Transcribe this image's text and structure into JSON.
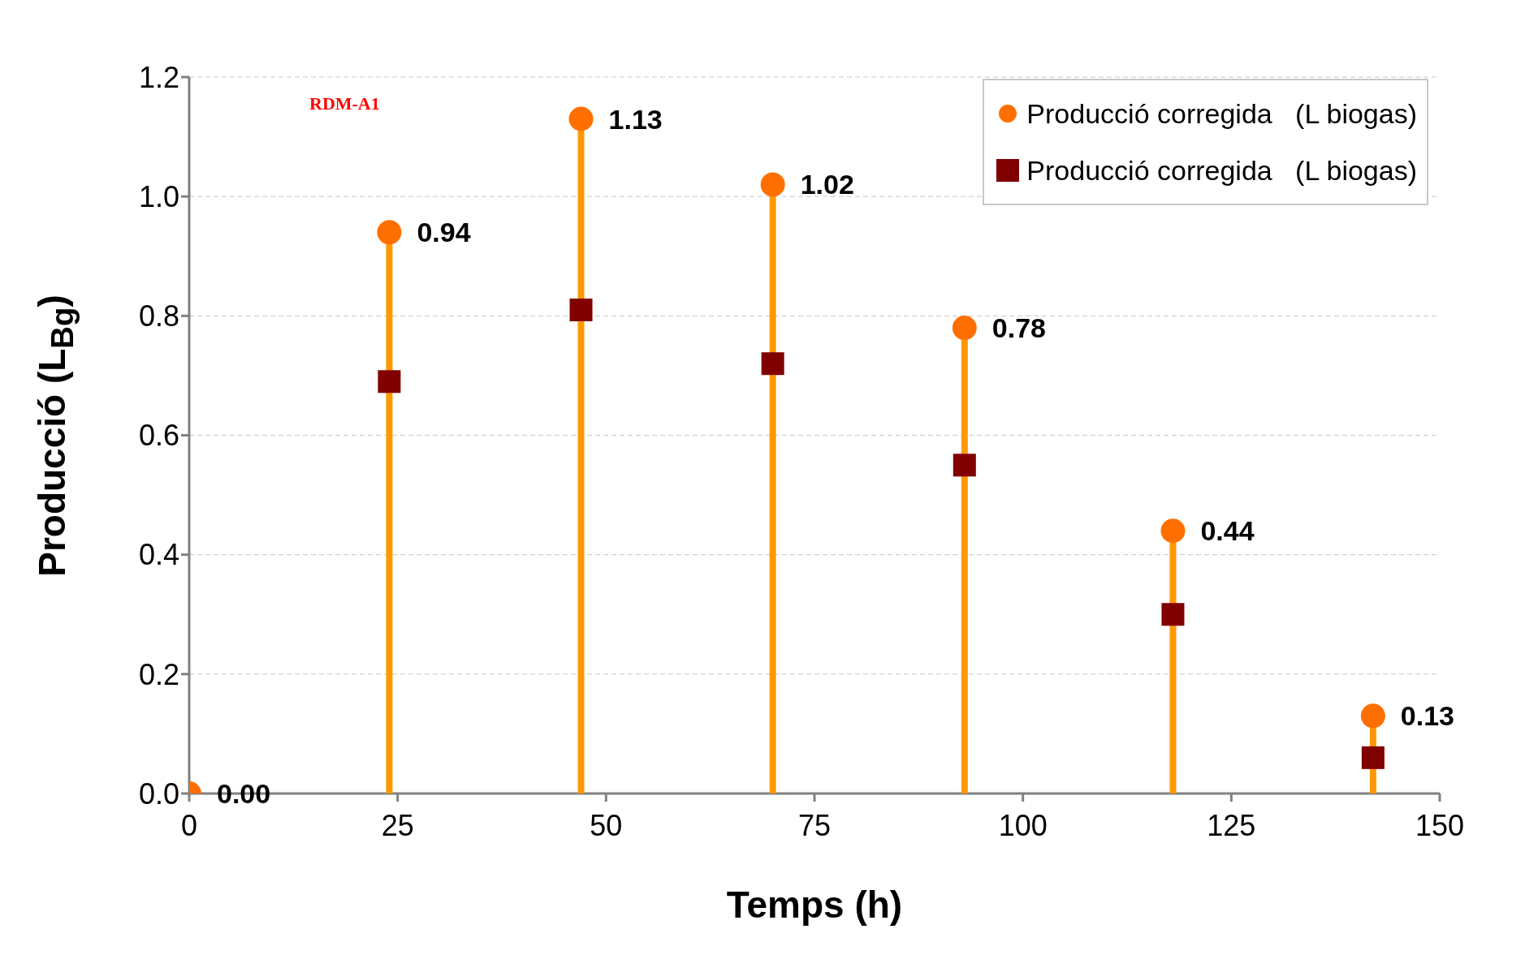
{
  "chart_data": {
    "type": "scatter",
    "xlabel": "Temps (h)",
    "ylabel": "Producció (L$_{Bg}$)",
    "annotations": [
      "RDM-A1"
    ],
    "x": [
      0,
      24,
      47,
      70,
      93,
      118,
      142
    ],
    "xlim": [
      0,
      150
    ],
    "xticks": [
      0,
      25,
      50,
      75,
      100,
      125,
      150
    ],
    "ylim": [
      0,
      1.2
    ],
    "yticks": [
      {
        "value": 0,
        "label": "0.0"
      },
      {
        "value": 0.2,
        "label": "0.2"
      },
      {
        "value": 0.4,
        "label": "0.4"
      },
      {
        "value": 0.6,
        "label": "0.6"
      },
      {
        "value": 0.8,
        "label": "0.8"
      },
      {
        "value": 1,
        "label": "1.0"
      },
      {
        "value": 1.2,
        "label": "1.2"
      }
    ],
    "grid": "y",
    "legend": "top right",
    "series": [
      {
        "name": "Producció corregida   (L biogas)",
        "type": "lollipop",
        "color": "#ff6f00",
        "marker": "circle",
        "values": [
          0,
          0.94,
          1.13,
          1.02,
          0.78,
          0.44,
          0.13
        ],
        "value_labels": [
          "0.00",
          "0.94",
          "1.13",
          "1.02",
          "0.78",
          "0.44",
          "0.13"
        ]
      },
      {
        "name": "Producció corregida   (L biogas)",
        "type": "scatter",
        "color": "#800000",
        "marker": "square",
        "values": [
          null,
          0.69,
          0.81,
          0.72,
          0.55,
          0.3,
          0.06
        ]
      }
    ]
  }
}
